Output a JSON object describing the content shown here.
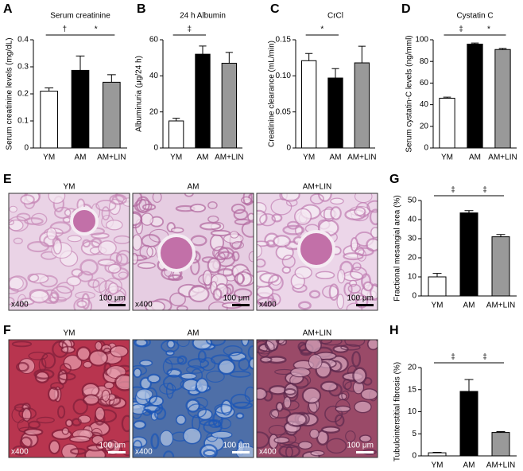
{
  "chart_data": [
    {
      "panel": "A",
      "type": "bar",
      "title": "Serum creatinine",
      "y_label": "Serum creatinine levels (mg/dL)",
      "categories": [
        "YM",
        "AM",
        "AM+LIN"
      ],
      "values": [
        0.21,
        0.287,
        0.243
      ],
      "errors": [
        0.012,
        0.053,
        0.028
      ],
      "colors": [
        "#ffffff",
        "#000000",
        "#999999"
      ],
      "ylim": [
        0,
        0.4
      ],
      "yticks": [
        0,
        0.1,
        0.2,
        0.3,
        0.4
      ],
      "significance": [
        {
          "between": [
            "YM",
            "AM"
          ],
          "label": "†"
        },
        {
          "between": [
            "AM",
            "AM+LIN"
          ],
          "label": "*"
        }
      ]
    },
    {
      "panel": "B",
      "type": "bar",
      "title": "24 h Albumin",
      "y_label": "Albuminuria (μg/24 h)",
      "categories": [
        "YM",
        "AM",
        "AM+LIN"
      ],
      "values": [
        15,
        52,
        47
      ],
      "errors": [
        1.5,
        4.5,
        6
      ],
      "colors": [
        "#ffffff",
        "#000000",
        "#999999"
      ],
      "ylim": [
        0,
        60
      ],
      "yticks": [
        0,
        20,
        40,
        60
      ],
      "significance": [
        {
          "between": [
            "YM",
            "AM"
          ],
          "label": "‡"
        }
      ]
    },
    {
      "panel": "C",
      "type": "bar",
      "title": "CrCl",
      "y_label": "Creatinine clearance (mL/min)",
      "categories": [
        "YM",
        "AM",
        "AM+LIN"
      ],
      "values": [
        0.121,
        0.097,
        0.118
      ],
      "errors": [
        0.01,
        0.013,
        0.023
      ],
      "colors": [
        "#ffffff",
        "#000000",
        "#999999"
      ],
      "ylim": [
        0,
        0.15
      ],
      "yticks": [
        0,
        0.05,
        {
          "value": 0.1,
          "label": "0.10"
        },
        0.15
      ],
      "significance": [
        {
          "between": [
            "YM",
            "AM"
          ],
          "label": "*"
        }
      ]
    },
    {
      "panel": "D",
      "type": "bar",
      "title": "Cystatin C",
      "y_label": "Serum cystatin-C levels (ng/mml)",
      "categories": [
        "YM",
        "AM",
        "AM+LIN"
      ],
      "values": [
        46,
        96,
        91
      ],
      "errors": [
        1,
        1,
        1
      ],
      "colors": [
        "#ffffff",
        "#000000",
        "#999999"
      ],
      "ylim": [
        0,
        100
      ],
      "yticks": [
        0,
        20,
        40,
        60,
        80,
        100
      ],
      "significance": [
        {
          "between": [
            "YM",
            "AM"
          ],
          "label": "‡"
        },
        {
          "between": [
            "AM",
            "AM+LIN"
          ],
          "label": "*"
        }
      ]
    },
    {
      "panel": "G",
      "type": "bar",
      "y_label": "Fractional mesangial area (%)",
      "categories": [
        "YM",
        "AM",
        "AM+LIN"
      ],
      "values": [
        10,
        43.5,
        31
      ],
      "errors": [
        1.8,
        1.2,
        1.2
      ],
      "colors": [
        "#ffffff",
        "#000000",
        "#999999"
      ],
      "ylim": [
        0,
        50
      ],
      "yticks": [
        0,
        10,
        20,
        30,
        40,
        50
      ],
      "significance": [
        {
          "between": [
            "YM",
            "AM"
          ],
          "label": "‡"
        },
        {
          "between": [
            "AM",
            "AM+LIN"
          ],
          "label": "‡"
        }
      ]
    },
    {
      "panel": "H",
      "type": "bar",
      "y_label": "Tubulointerstitial fibrosis (%)",
      "categories": [
        "YM",
        "AM",
        "AM+LIN"
      ],
      "values": [
        0.7,
        14.6,
        5.3
      ],
      "errors": [
        0.1,
        2.7,
        0.2
      ],
      "colors": [
        "#ffffff",
        "#000000",
        "#999999"
      ],
      "ylim": [
        0,
        20
      ],
      "yticks": [
        0,
        5,
        10,
        15,
        20
      ],
      "significance": [
        {
          "between": [
            "YM",
            "AM"
          ],
          "label": "‡"
        },
        {
          "between": [
            "AM",
            "AM+LIN"
          ],
          "label": "‡"
        }
      ]
    }
  ],
  "image_panels": [
    {
      "panel": "E",
      "images": [
        {
          "title": "YM",
          "magnification": "x400",
          "scale_bar": "100 μm"
        },
        {
          "title": "AM",
          "magnification": "x400",
          "scale_bar": "100 μm"
        },
        {
          "title": "AM+LIN",
          "magnification": "x400",
          "scale_bar": "100 μm"
        }
      ]
    },
    {
      "panel": "F",
      "images": [
        {
          "title": "YM",
          "magnification": "x400",
          "scale_bar": "100 μm"
        },
        {
          "title": "AM",
          "magnification": "x400",
          "scale_bar": "100 μm"
        },
        {
          "title": "AM+LIN",
          "magnification": "x400",
          "scale_bar": "100 μm"
        }
      ]
    }
  ]
}
